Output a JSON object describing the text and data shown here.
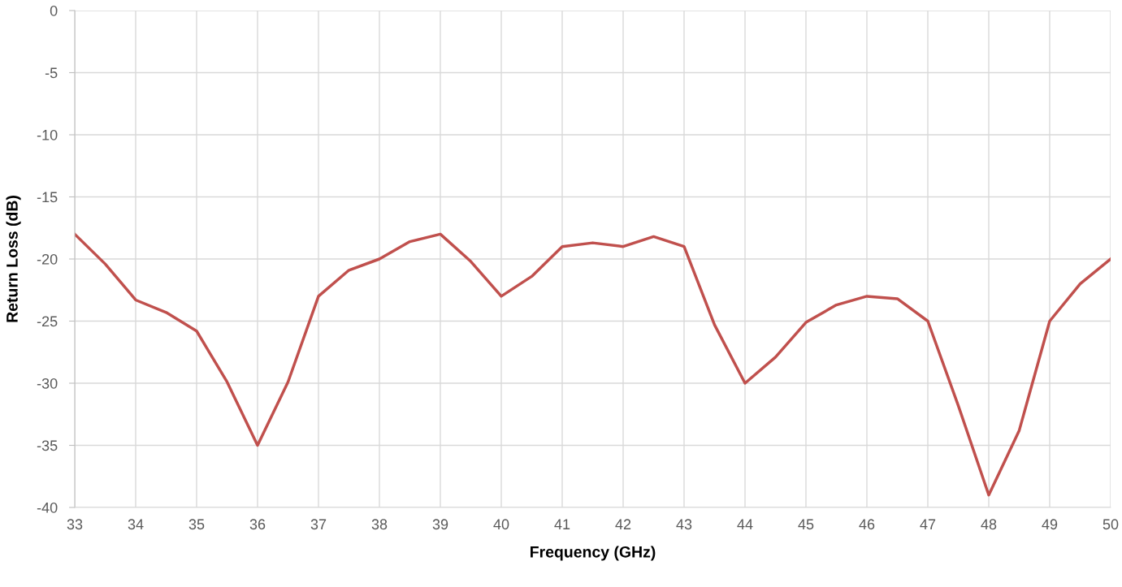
{
  "chart_data": {
    "type": "line",
    "xlabel": "Frequency (GHz)",
    "ylabel": "Return Loss (dB)",
    "x": [
      33,
      33.5,
      34,
      34.5,
      35,
      35.5,
      36,
      36.5,
      37,
      37.5,
      38,
      38.5,
      39,
      39.5,
      40,
      40.5,
      41,
      41.5,
      42,
      42.5,
      43,
      43.5,
      44,
      44.5,
      45,
      45.5,
      46,
      46.5,
      47,
      47.5,
      48,
      48.5,
      49,
      49.5,
      50
    ],
    "series": [
      {
        "color": "#c0504d",
        "values": [
          -18,
          -20.4,
          -23.3,
          -24.3,
          -25.8,
          -29.9,
          -35,
          -29.9,
          -23,
          -20.9,
          -20,
          -18.6,
          -18,
          -20.2,
          -23,
          -21.4,
          -19,
          -18.7,
          -19,
          -18.2,
          -19,
          -25.3,
          -30,
          -27.9,
          -25.1,
          -23.7,
          -23,
          -23.2,
          -25,
          -31.8,
          -39,
          -33.8,
          -25,
          -22,
          -20
        ]
      }
    ],
    "xlim": [
      33,
      50
    ],
    "xticks": [
      33,
      34,
      35,
      36,
      37,
      38,
      39,
      40,
      41,
      42,
      43,
      44,
      45,
      46,
      47,
      48,
      49,
      50
    ],
    "ylim": [
      -40,
      0
    ],
    "yticks": [
      -40,
      -35,
      -30,
      -25,
      -20,
      -15,
      -10,
      -5,
      0
    ],
    "grid": true,
    "marker": "none",
    "line_style": "solid"
  }
}
